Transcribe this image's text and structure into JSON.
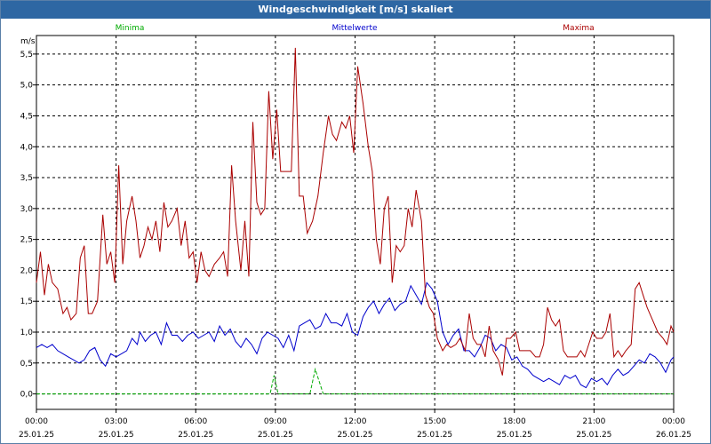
{
  "window": {
    "title": "Windgeschwindigkeit [m/s] skaliert"
  },
  "chart_data": {
    "type": "line",
    "title": "Windgeschwindigkeit [m/s] skaliert",
    "ylabel": "m/s",
    "xlabel": "",
    "ylim": [
      -0.25,
      5.8
    ],
    "xlim": [
      0,
      24
    ],
    "grid": true,
    "legend": "top",
    "y_ticks": [
      "0,0",
      "0,5",
      "1,0",
      "1,5",
      "2,0",
      "2,5",
      "3,0",
      "3,5",
      "4,0",
      "4,5",
      "5,0",
      "5,5"
    ],
    "x_ticks": [
      {
        "time": "00:00",
        "date": "25.01.25"
      },
      {
        "time": "03:00",
        "date": "25.01.25"
      },
      {
        "time": "06:00",
        "date": "25.01.25"
      },
      {
        "time": "09:00",
        "date": "25.01.25"
      },
      {
        "time": "12:00",
        "date": "25.01.25"
      },
      {
        "time": "15:00",
        "date": "25.01.25"
      },
      {
        "time": "18:00",
        "date": "25.01.25"
      },
      {
        "time": "21:00",
        "date": "25.01.25"
      },
      {
        "time": "00:00",
        "date": "26.01.25"
      }
    ],
    "series": [
      {
        "name": "Minima",
        "color": "#00aa00",
        "dashed": true,
        "points": [
          [
            0,
            0
          ],
          [
            8.8,
            0
          ],
          [
            8.95,
            0.3
          ],
          [
            9.1,
            0
          ],
          [
            10.3,
            0
          ],
          [
            10.5,
            0.4
          ],
          [
            10.8,
            0
          ],
          [
            24,
            0
          ]
        ]
      },
      {
        "name": "Mittelwerte",
        "color": "#0000cc",
        "dashed": false,
        "points": [
          [
            0,
            0.75
          ],
          [
            0.2,
            0.8
          ],
          [
            0.4,
            0.75
          ],
          [
            0.6,
            0.8
          ],
          [
            0.8,
            0.7
          ],
          [
            1.0,
            0.65
          ],
          [
            1.2,
            0.6
          ],
          [
            1.4,
            0.55
          ],
          [
            1.6,
            0.5
          ],
          [
            1.8,
            0.55
          ],
          [
            2.0,
            0.7
          ],
          [
            2.2,
            0.75
          ],
          [
            2.4,
            0.55
          ],
          [
            2.6,
            0.45
          ],
          [
            2.8,
            0.65
          ],
          [
            3.0,
            0.6
          ],
          [
            3.2,
            0.65
          ],
          [
            3.4,
            0.7
          ],
          [
            3.6,
            0.9
          ],
          [
            3.8,
            0.8
          ],
          [
            3.9,
            1.0
          ],
          [
            4.1,
            0.85
          ],
          [
            4.3,
            0.95
          ],
          [
            4.5,
            1.0
          ],
          [
            4.7,
            0.8
          ],
          [
            4.9,
            1.15
          ],
          [
            5.1,
            0.95
          ],
          [
            5.3,
            0.95
          ],
          [
            5.5,
            0.85
          ],
          [
            5.7,
            0.95
          ],
          [
            5.9,
            1.0
          ],
          [
            6.1,
            0.9
          ],
          [
            6.3,
            0.95
          ],
          [
            6.5,
            1.0
          ],
          [
            6.7,
            0.85
          ],
          [
            6.9,
            1.1
          ],
          [
            7.1,
            0.95
          ],
          [
            7.3,
            1.05
          ],
          [
            7.5,
            0.85
          ],
          [
            7.7,
            0.75
          ],
          [
            7.9,
            0.9
          ],
          [
            8.1,
            0.8
          ],
          [
            8.3,
            0.65
          ],
          [
            8.5,
            0.9
          ],
          [
            8.7,
            1.0
          ],
          [
            8.9,
            0.95
          ],
          [
            9.1,
            0.9
          ],
          [
            9.3,
            0.75
          ],
          [
            9.5,
            0.95
          ],
          [
            9.7,
            0.7
          ],
          [
            9.9,
            1.1
          ],
          [
            10.1,
            1.15
          ],
          [
            10.3,
            1.2
          ],
          [
            10.5,
            1.05
          ],
          [
            10.7,
            1.1
          ],
          [
            10.9,
            1.3
          ],
          [
            11.1,
            1.15
          ],
          [
            11.3,
            1.15
          ],
          [
            11.5,
            1.1
          ],
          [
            11.7,
            1.3
          ],
          [
            11.9,
            1.0
          ],
          [
            12.1,
            0.95
          ],
          [
            12.3,
            1.25
          ],
          [
            12.5,
            1.4
          ],
          [
            12.7,
            1.5
          ],
          [
            12.9,
            1.3
          ],
          [
            13.1,
            1.45
          ],
          [
            13.3,
            1.55
          ],
          [
            13.5,
            1.35
          ],
          [
            13.7,
            1.45
          ],
          [
            13.9,
            1.5
          ],
          [
            14.1,
            1.75
          ],
          [
            14.3,
            1.6
          ],
          [
            14.5,
            1.45
          ],
          [
            14.7,
            1.8
          ],
          [
            14.9,
            1.7
          ],
          [
            15.1,
            1.5
          ],
          [
            15.3,
            1.0
          ],
          [
            15.5,
            0.8
          ],
          [
            15.7,
            0.95
          ],
          [
            15.9,
            1.05
          ],
          [
            16.1,
            0.7
          ],
          [
            16.3,
            0.7
          ],
          [
            16.5,
            0.6
          ],
          [
            16.7,
            0.75
          ],
          [
            16.9,
            0.95
          ],
          [
            17.1,
            0.9
          ],
          [
            17.3,
            0.7
          ],
          [
            17.5,
            0.8
          ],
          [
            17.7,
            0.75
          ],
          [
            17.9,
            0.55
          ],
          [
            18.1,
            0.6
          ],
          [
            18.3,
            0.45
          ],
          [
            18.5,
            0.4
          ],
          [
            18.7,
            0.3
          ],
          [
            18.9,
            0.25
          ],
          [
            19.1,
            0.2
          ],
          [
            19.3,
            0.25
          ],
          [
            19.5,
            0.2
          ],
          [
            19.7,
            0.15
          ],
          [
            19.9,
            0.3
          ],
          [
            20.1,
            0.25
          ],
          [
            20.3,
            0.3
          ],
          [
            20.5,
            0.15
          ],
          [
            20.7,
            0.1
          ],
          [
            20.9,
            0.25
          ],
          [
            21.1,
            0.2
          ],
          [
            21.3,
            0.25
          ],
          [
            21.5,
            0.15
          ],
          [
            21.7,
            0.3
          ],
          [
            21.9,
            0.4
          ],
          [
            22.1,
            0.3
          ],
          [
            22.3,
            0.35
          ],
          [
            22.5,
            0.45
          ],
          [
            22.7,
            0.55
          ],
          [
            22.9,
            0.5
          ],
          [
            23.1,
            0.65
          ],
          [
            23.3,
            0.6
          ],
          [
            23.5,
            0.5
          ],
          [
            23.7,
            0.35
          ],
          [
            23.9,
            0.55
          ],
          [
            24,
            0.6
          ]
        ]
      },
      {
        "name": "Maxima",
        "color": "#aa0000",
        "dashed": false,
        "points": [
          [
            0,
            1.8
          ],
          [
            0.15,
            2.3
          ],
          [
            0.3,
            1.6
          ],
          [
            0.45,
            2.1
          ],
          [
            0.6,
            1.8
          ],
          [
            0.8,
            1.7
          ],
          [
            1.0,
            1.3
          ],
          [
            1.15,
            1.4
          ],
          [
            1.3,
            1.2
          ],
          [
            1.5,
            1.3
          ],
          [
            1.65,
            2.2
          ],
          [
            1.8,
            2.4
          ],
          [
            1.95,
            1.3
          ],
          [
            2.1,
            1.3
          ],
          [
            2.3,
            1.5
          ],
          [
            2.5,
            2.9
          ],
          [
            2.65,
            2.1
          ],
          [
            2.8,
            2.3
          ],
          [
            2.95,
            1.8
          ],
          [
            3.1,
            3.7
          ],
          [
            3.25,
            2.1
          ],
          [
            3.4,
            2.8
          ],
          [
            3.6,
            3.2
          ],
          [
            3.75,
            2.8
          ],
          [
            3.9,
            2.2
          ],
          [
            4.05,
            2.4
          ],
          [
            4.2,
            2.7
          ],
          [
            4.35,
            2.5
          ],
          [
            4.5,
            2.8
          ],
          [
            4.65,
            2.3
          ],
          [
            4.8,
            3.1
          ],
          [
            4.95,
            2.7
          ],
          [
            5.1,
            2.8
          ],
          [
            5.3,
            3.0
          ],
          [
            5.45,
            2.4
          ],
          [
            5.6,
            2.8
          ],
          [
            5.75,
            2.2
          ],
          [
            5.9,
            2.3
          ],
          [
            6.05,
            1.8
          ],
          [
            6.2,
            2.3
          ],
          [
            6.35,
            2.0
          ],
          [
            6.5,
            1.9
          ],
          [
            6.7,
            2.1
          ],
          [
            6.9,
            2.2
          ],
          [
            7.05,
            2.3
          ],
          [
            7.2,
            1.9
          ],
          [
            7.35,
            3.7
          ],
          [
            7.5,
            2.8
          ],
          [
            7.7,
            2.0
          ],
          [
            7.85,
            2.8
          ],
          [
            8.0,
            1.9
          ],
          [
            8.15,
            4.4
          ],
          [
            8.3,
            3.1
          ],
          [
            8.45,
            2.9
          ],
          [
            8.6,
            3.0
          ],
          [
            8.75,
            4.9
          ],
          [
            8.9,
            3.8
          ],
          [
            9.05,
            4.6
          ],
          [
            9.2,
            3.6
          ],
          [
            9.35,
            3.6
          ],
          [
            9.6,
            3.6
          ],
          [
            9.75,
            5.6
          ],
          [
            9.9,
            3.2
          ],
          [
            10.05,
            3.2
          ],
          [
            10.2,
            2.6
          ],
          [
            10.4,
            2.8
          ],
          [
            10.6,
            3.2
          ],
          [
            10.8,
            3.9
          ],
          [
            11.0,
            4.5
          ],
          [
            11.15,
            4.2
          ],
          [
            11.3,
            4.1
          ],
          [
            11.5,
            4.4
          ],
          [
            11.65,
            4.3
          ],
          [
            11.8,
            4.5
          ],
          [
            11.95,
            3.9
          ],
          [
            12.1,
            5.3
          ],
          [
            12.3,
            4.7
          ],
          [
            12.5,
            4.0
          ],
          [
            12.65,
            3.6
          ],
          [
            12.8,
            2.5
          ],
          [
            12.95,
            2.1
          ],
          [
            13.1,
            3.0
          ],
          [
            13.25,
            3.2
          ],
          [
            13.4,
            1.8
          ],
          [
            13.55,
            2.4
          ],
          [
            13.7,
            2.3
          ],
          [
            13.85,
            2.4
          ],
          [
            14.0,
            3.0
          ],
          [
            14.15,
            2.7
          ],
          [
            14.3,
            3.3
          ],
          [
            14.5,
            2.8
          ],
          [
            14.65,
            1.6
          ],
          [
            14.8,
            1.4
          ],
          [
            14.95,
            1.3
          ],
          [
            15.1,
            0.9
          ],
          [
            15.3,
            0.7
          ],
          [
            15.45,
            0.8
          ],
          [
            15.6,
            0.75
          ],
          [
            15.8,
            0.8
          ],
          [
            15.95,
            0.9
          ],
          [
            16.15,
            0.7
          ],
          [
            16.3,
            1.3
          ],
          [
            16.45,
            0.9
          ],
          [
            16.6,
            0.8
          ],
          [
            16.75,
            0.8
          ],
          [
            16.9,
            0.6
          ],
          [
            17.05,
            1.1
          ],
          [
            17.2,
            0.7
          ],
          [
            17.4,
            0.55
          ],
          [
            17.55,
            0.3
          ],
          [
            17.7,
            0.9
          ],
          [
            17.85,
            0.9
          ],
          [
            18.05,
            1.0
          ],
          [
            18.2,
            0.7
          ],
          [
            18.4,
            0.7
          ],
          [
            18.6,
            0.7
          ],
          [
            18.8,
            0.6
          ],
          [
            18.95,
            0.6
          ],
          [
            19.1,
            0.8
          ],
          [
            19.25,
            1.4
          ],
          [
            19.4,
            1.2
          ],
          [
            19.55,
            1.1
          ],
          [
            19.7,
            1.2
          ],
          [
            19.85,
            0.7
          ],
          [
            20.0,
            0.6
          ],
          [
            20.2,
            0.6
          ],
          [
            20.35,
            0.6
          ],
          [
            20.5,
            0.7
          ],
          [
            20.65,
            0.6
          ],
          [
            20.8,
            0.8
          ],
          [
            20.95,
            1.0
          ],
          [
            21.1,
            0.9
          ],
          [
            21.3,
            0.9
          ],
          [
            21.45,
            1.0
          ],
          [
            21.6,
            1.3
          ],
          [
            21.75,
            0.6
          ],
          [
            21.9,
            0.7
          ],
          [
            22.05,
            0.6
          ],
          [
            22.2,
            0.7
          ],
          [
            22.4,
            0.8
          ],
          [
            22.55,
            1.7
          ],
          [
            22.7,
            1.8
          ],
          [
            22.85,
            1.6
          ],
          [
            23.0,
            1.4
          ],
          [
            23.2,
            1.2
          ],
          [
            23.4,
            1.0
          ],
          [
            23.6,
            0.9
          ],
          [
            23.75,
            0.8
          ],
          [
            23.9,
            1.1
          ],
          [
            24,
            1.0
          ]
        ]
      }
    ]
  }
}
